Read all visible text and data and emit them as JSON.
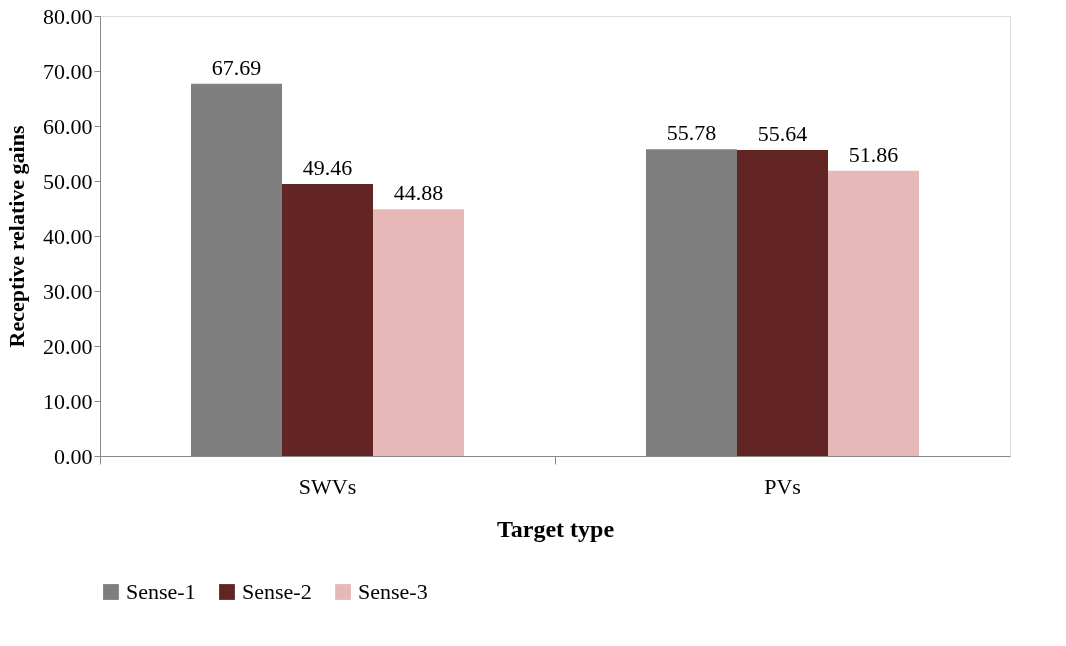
{
  "chart_data": {
    "type": "bar",
    "xlabel": "Target type",
    "ylabel": "Receptive relative gains",
    "categories": [
      "SWVs",
      "PVs"
    ],
    "series": [
      {
        "name": "Sense-1",
        "color": "#7f7f7f",
        "values": [
          67.69,
          55.78
        ]
      },
      {
        "name": "Sense-2",
        "color": "#632523",
        "values": [
          49.46,
          55.64
        ]
      },
      {
        "name": "Sense-3",
        "color": "#e6b9b8",
        "values": [
          44.88,
          51.86
        ]
      }
    ],
    "ylim": [
      0,
      80
    ],
    "yticks": [
      {
        "value": 0,
        "label": "0.00"
      },
      {
        "value": 10,
        "label": "10.00"
      },
      {
        "value": 20,
        "label": "20.00"
      },
      {
        "value": 30,
        "label": "30.00"
      },
      {
        "value": 40,
        "label": "40.00"
      },
      {
        "value": 50,
        "label": "50.00"
      },
      {
        "value": 60,
        "label": "60.00"
      },
      {
        "value": 70,
        "label": "70.00"
      },
      {
        "value": 80,
        "label": "80.00"
      }
    ],
    "data_labels": true,
    "grid": false,
    "legend": "bottom"
  }
}
